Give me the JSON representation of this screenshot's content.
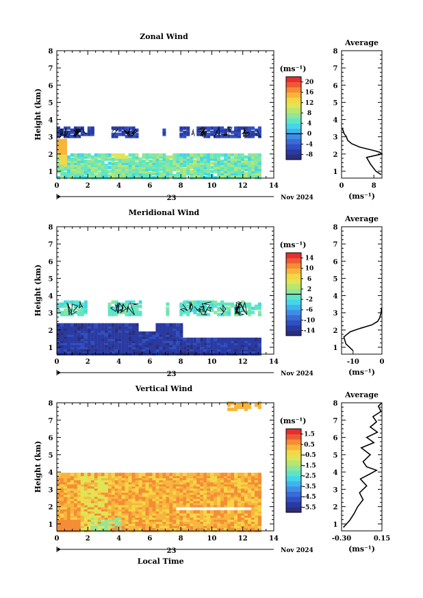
{
  "chart_data": [
    {
      "type": "heatmap",
      "title": "Zonal Wind",
      "ylabel": "Height (km)",
      "x_ticks": [
        "0",
        "2",
        "4",
        "6",
        "8",
        "10",
        "12",
        "14"
      ],
      "y_ticks": [
        "1",
        "2",
        "3",
        "4",
        "5",
        "6",
        "7",
        "8"
      ],
      "xlim": [
        0,
        14
      ],
      "ylim": [
        0.6,
        8.0
      ],
      "date_label": "23",
      "month_label": "Nov 2024",
      "colorbar": {
        "unit": "(ms⁻¹)",
        "labels": [
          "20",
          "16",
          "12",
          "8",
          "4",
          "0",
          "-4",
          "-8"
        ],
        "min": -10,
        "max": 22,
        "zero_line_value": 0
      },
      "regions": [
        {
          "x": [
            0,
            13.1
          ],
          "y": [
            0.6,
            2.0
          ],
          "value": 6.5,
          "note": "low cyan/green layer"
        },
        {
          "x": [
            0,
            0.5
          ],
          "y": [
            1.8,
            2.8
          ],
          "value": 14
        },
        {
          "x": [
            1.0,
            13.1
          ],
          "y": [
            2.9,
            3.6
          ],
          "value": -6,
          "note": "scattered blue cells"
        }
      ],
      "average_profile": {
        "title": "Average",
        "xlabel": "(ms⁻¹)",
        "x_ticks": [
          "0",
          "8"
        ],
        "xlim": [
          0,
          10
        ],
        "y_ticks": [
          "1",
          "2",
          "3",
          "4",
          "5",
          "6",
          "7",
          "8"
        ],
        "height_km": [
          0.8,
          1.0,
          1.4,
          1.8,
          2.0,
          2.1,
          2.2,
          2.4,
          2.6,
          2.8,
          3.0,
          3.2,
          3.5
        ],
        "wind": [
          9.8,
          8.5,
          7.2,
          6.2,
          10.0,
          9.5,
          8.0,
          4.5,
          2.5,
          1.5,
          1.2,
          0.6,
          0.2
        ]
      }
    },
    {
      "type": "heatmap",
      "title": "Meridional Wind",
      "ylabel": "Height (km)",
      "x_ticks": [
        "0",
        "2",
        "4",
        "6",
        "8",
        "10",
        "12",
        "14"
      ],
      "y_ticks": [
        "1",
        "2",
        "3",
        "4",
        "5",
        "6",
        "7",
        "8"
      ],
      "xlim": [
        0,
        14
      ],
      "ylim": [
        0.6,
        8.0
      ],
      "date_label": "23",
      "month_label": "Nov 2024",
      "colorbar": {
        "unit": "(ms⁻¹)",
        "labels": [
          "14",
          "10",
          "6",
          "2",
          "-2",
          "-6",
          "-10",
          "-14"
        ],
        "min": -16,
        "max": 16,
        "zero_line_value": 0
      },
      "regions": [
        {
          "x": [
            0,
            13.1
          ],
          "y": [
            0.6,
            2.4
          ],
          "value": -13,
          "note": "dark blue low layer"
        },
        {
          "x": [
            0,
            13.1
          ],
          "y": [
            2.8,
            3.7
          ],
          "value": -1,
          "note": "cyan cells"
        }
      ],
      "average_profile": {
        "title": "Average",
        "xlabel": "(ms⁻¹)",
        "x_ticks": [
          "-10",
          "0"
        ],
        "xlim": [
          -14,
          0
        ],
        "y_ticks": [
          "1",
          "2",
          "3",
          "4",
          "5",
          "6",
          "7",
          "8"
        ],
        "height_km": [
          0.8,
          1.2,
          1.6,
          1.9,
          2.1,
          2.3,
          2.5,
          2.7,
          3.0,
          3.3
        ],
        "wind": [
          -10.0,
          -12.5,
          -13.2,
          -11.0,
          -7.5,
          -3.5,
          -1.5,
          -0.8,
          -0.3,
          -0.1
        ]
      }
    },
    {
      "type": "heatmap",
      "title": "Vertical Wind",
      "ylabel": "Height (km)",
      "xlabel": "Local Time",
      "x_ticks": [
        "0",
        "2",
        "4",
        "6",
        "8",
        "10",
        "12",
        "14"
      ],
      "y_ticks": [
        "1",
        "2",
        "3",
        "4",
        "5",
        "6",
        "7",
        "8"
      ],
      "xlim": [
        0,
        14
      ],
      "ylim": [
        0.6,
        8.0
      ],
      "date_label": "23",
      "month_label": "Nov 2024",
      "colorbar": {
        "unit": "(ms⁻¹)",
        "labels": [
          "1.5",
          "0.5",
          "-0.5",
          "-1.5",
          "-2.5",
          "-3.5",
          "-4.5",
          "-5.5"
        ],
        "min": -6,
        "max": 2
      },
      "regions": [
        {
          "x": [
            0,
            13.1
          ],
          "y": [
            0.6,
            3.8
          ],
          "value": 0.4,
          "note": "orange/yellow layer"
        },
        {
          "x": [
            11.0,
            13.1
          ],
          "y": [
            7.6,
            8.0
          ],
          "value": 0.2
        }
      ],
      "average_profile": {
        "title": "Average",
        "xlabel": "(ms⁻¹)",
        "x_ticks": [
          "-0.30",
          "0.15"
        ],
        "xlim": [
          -0.3,
          0.15
        ],
        "y_ticks": [
          "1",
          "2",
          "3",
          "4",
          "5",
          "6",
          "7",
          "8"
        ],
        "height_km": [
          0.8,
          1.2,
          1.6,
          2.0,
          2.4,
          2.8,
          3.2,
          3.6,
          3.9,
          4.1,
          4.3,
          4.6,
          5.0,
          5.4,
          5.7,
          6.0,
          6.3,
          6.6,
          6.9,
          7.2,
          7.5,
          7.8,
          8.0
        ],
        "wind": [
          -0.28,
          -0.21,
          -0.16,
          -0.12,
          -0.06,
          -0.1,
          -0.02,
          -0.09,
          0.02,
          0.09,
          -0.02,
          -0.06,
          0.02,
          -0.08,
          0.06,
          -0.02,
          0.1,
          0.02,
          0.09,
          0.05,
          0.14,
          0.11,
          0.15
        ]
      }
    }
  ]
}
